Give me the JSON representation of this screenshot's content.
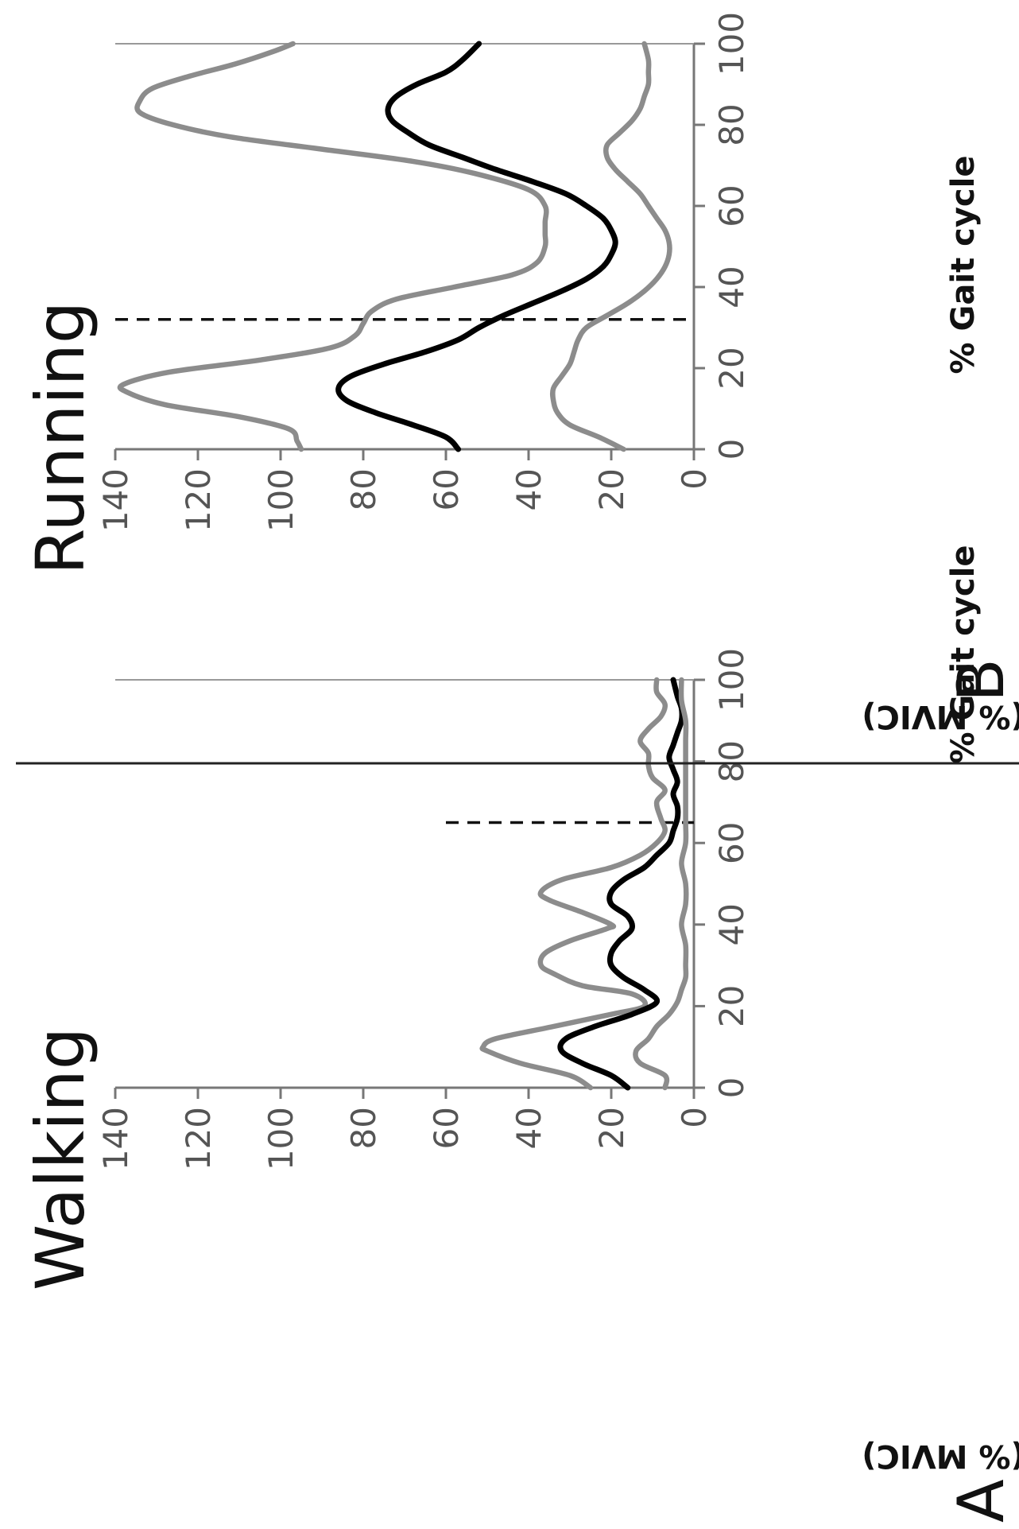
{
  "chart_data": [
    {
      "type": "line",
      "panel": "A",
      "title": "Walking",
      "xlabel": "% Gait cycle",
      "ylabel": "Amplitude (% MVIC)",
      "xlim": [
        0,
        100
      ],
      "ylim": [
        0,
        140
      ],
      "xticks": [
        0,
        20,
        40,
        60,
        80,
        100
      ],
      "yticks": [
        0,
        20,
        40,
        60,
        80,
        100,
        120,
        140
      ],
      "vline": 65,
      "series": [
        {
          "style": "upper",
          "color": "#8c8c8c",
          "x": [
            0,
            3,
            6,
            9,
            10,
            12,
            15,
            18,
            20,
            23,
            25,
            28,
            30,
            33,
            36,
            39,
            40,
            43,
            46,
            48,
            51,
            54,
            57,
            60,
            63,
            66,
            70,
            73,
            76,
            79,
            82,
            85,
            88,
            91,
            94,
            97,
            100
          ],
          "y": [
            25,
            30,
            42,
            50,
            51,
            48,
            34,
            20,
            12,
            15,
            27,
            34,
            37,
            36,
            30,
            21,
            20,
            27,
            35,
            37,
            32,
            20,
            13,
            9,
            7,
            8,
            9,
            7,
            10,
            11,
            11,
            13,
            11,
            8,
            7,
            9,
            9
          ]
        },
        {
          "style": "mean",
          "color": "#000000",
          "x": [
            0,
            3,
            6,
            9,
            12,
            15,
            18,
            21,
            24,
            27,
            30,
            33,
            36,
            39,
            42,
            45,
            48,
            51,
            54,
            57,
            60,
            63,
            66,
            69,
            72,
            75,
            78,
            81,
            84,
            87,
            90,
            93,
            96,
            100
          ],
          "y": [
            16,
            20,
            27,
            32,
            31,
            24,
            15,
            9,
            12,
            17,
            20,
            20,
            18,
            15,
            16,
            20,
            20,
            17,
            12,
            9,
            6,
            5,
            4,
            4,
            5,
            4,
            5,
            6,
            5,
            4,
            3,
            3,
            4,
            5
          ]
        },
        {
          "style": "lower",
          "color": "#8c8c8c",
          "x": [
            0,
            3,
            6,
            9,
            12,
            15,
            18,
            21,
            24,
            27,
            30,
            35,
            40,
            45,
            50,
            55,
            60,
            65,
            70,
            75,
            80,
            85,
            90,
            95,
            100
          ],
          "y": [
            7,
            7,
            13,
            14,
            11,
            9,
            6,
            4,
            3,
            2,
            2,
            2,
            3,
            2,
            2,
            3,
            2,
            2,
            2,
            2,
            2,
            2,
            2,
            3,
            3
          ]
        }
      ]
    },
    {
      "type": "line",
      "panel": "B",
      "title": "Running",
      "xlabel": "% Gait cycle",
      "ylabel": "Amplitude (% MVIC)",
      "xlim": [
        0,
        100
      ],
      "ylim": [
        0,
        140
      ],
      "xticks": [
        0,
        20,
        40,
        60,
        80,
        100
      ],
      "yticks": [
        0,
        20,
        40,
        60,
        80,
        100,
        120,
        140
      ],
      "vline": 32,
      "series": [
        {
          "style": "upper",
          "color": "#8c8c8c",
          "x": [
            0,
            2,
            5,
            8,
            11,
            14,
            16,
            19,
            22,
            25,
            28,
            31,
            34,
            37,
            40,
            43,
            46,
            50,
            53,
            56,
            60,
            64,
            68,
            71,
            74,
            77,
            80,
            83,
            86,
            89,
            92,
            95,
            98,
            100
          ],
          "y": [
            95,
            96,
            98,
            110,
            128,
            137,
            138,
            127,
            105,
            88,
            82,
            80,
            78,
            72,
            58,
            44,
            38,
            36,
            36,
            36,
            36,
            40,
            53,
            68,
            90,
            112,
            126,
            134,
            134,
            131,
            122,
            111,
            102,
            97
          ]
        },
        {
          "style": "mean",
          "color": "#000000",
          "x": [
            0,
            3,
            6,
            9,
            12,
            15,
            18,
            21,
            24,
            27,
            30,
            33,
            36,
            39,
            42,
            45,
            48,
            51,
            54,
            57,
            60,
            63,
            66,
            69,
            72,
            75,
            78,
            81,
            84,
            87,
            90,
            93,
            96,
            100
          ],
          "y": [
            57,
            60,
            68,
            77,
            84,
            86,
            83,
            75,
            65,
            57,
            52,
            46,
            39,
            32,
            26,
            22,
            20,
            19,
            20,
            22,
            26,
            31,
            39,
            48,
            56,
            64,
            69,
            73,
            74,
            72,
            67,
            60,
            56,
            52
          ]
        },
        {
          "style": "lower",
          "color": "#8c8c8c",
          "x": [
            0,
            3,
            6,
            9,
            12,
            15,
            18,
            21,
            24,
            27,
            30,
            33,
            36,
            39,
            42,
            45,
            48,
            51,
            54,
            57,
            60,
            63,
            66,
            69,
            72,
            75,
            78,
            81,
            84,
            87,
            90,
            93,
            96,
            100
          ],
          "y": [
            17,
            23,
            30,
            33,
            34,
            34,
            32,
            30,
            29,
            28,
            26,
            21,
            16,
            12,
            9,
            7,
            6,
            6,
            7,
            9,
            11,
            13,
            16,
            19,
            21,
            21,
            18,
            15,
            13,
            12,
            11,
            11,
            11,
            12
          ]
        }
      ]
    }
  ]
}
